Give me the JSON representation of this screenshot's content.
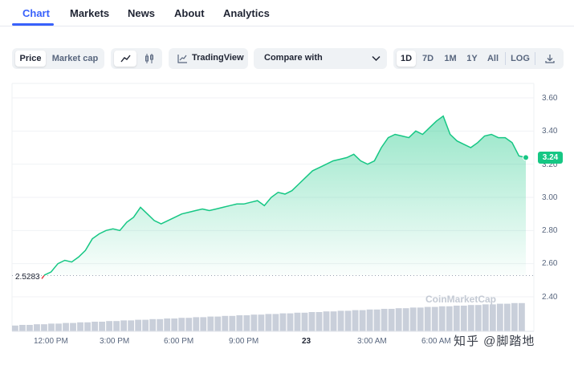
{
  "tabs": [
    "Chart",
    "Markets",
    "News",
    "About",
    "Analytics"
  ],
  "toolbar": {
    "price": "Price",
    "market_cap": "Market cap",
    "tradingview": "TradingView",
    "compare": "Compare with",
    "ranges": [
      "1D",
      "7D",
      "1M",
      "1Y",
      "All"
    ],
    "log": "LOG"
  },
  "icons": {
    "line": "line-chart-icon",
    "candle": "candlestick-icon",
    "tv": "tradingview-icon",
    "chevron": "chevron-down-icon",
    "download": "download-icon"
  },
  "colors": {
    "accent": "#3861fb",
    "up": "#16c784",
    "down": "#ea3943"
  },
  "chart_data": {
    "type": "area",
    "y_ticks": [
      "3.60",
      "3.40",
      "3.20",
      "3.00",
      "2.80",
      "2.60",
      "2.40"
    ],
    "ylim": [
      2.4,
      3.6
    ],
    "x_ticks": [
      "12:00 PM",
      "3:00 PM",
      "6:00 PM",
      "9:00 PM",
      "23",
      "3:00 AM",
      "6:00 AM"
    ],
    "open_price": "2.5283",
    "current_price": "3.24",
    "series": [
      {
        "values": [
          2.53,
          2.55,
          2.6,
          2.62,
          2.61,
          2.64,
          2.68,
          2.75,
          2.78,
          2.8,
          2.81,
          2.8,
          2.85,
          2.88,
          2.94,
          2.9,
          2.86,
          2.84,
          2.86,
          2.88,
          2.9,
          2.91,
          2.92,
          2.93,
          2.92,
          2.93,
          2.94,
          2.95,
          2.96,
          2.96,
          2.97,
          2.98,
          2.95,
          3.0,
          3.03,
          3.02,
          3.04,
          3.08,
          3.12,
          3.16,
          3.18,
          3.2,
          3.22,
          3.23,
          3.24,
          3.26,
          3.22,
          3.2,
          3.22,
          3.3,
          3.36,
          3.38,
          3.37,
          3.36,
          3.4,
          3.38,
          3.42,
          3.46,
          3.49,
          3.38,
          3.34,
          3.32,
          3.3,
          3.33,
          3.37,
          3.38,
          3.36,
          3.36,
          3.33,
          3.25,
          3.24
        ]
      }
    ],
    "volume": [
      0.09,
      0.1,
      0.1,
      0.11,
      0.11,
      0.12,
      0.12,
      0.13,
      0.13,
      0.14,
      0.14,
      0.15,
      0.15,
      0.16,
      0.16,
      0.17,
      0.17,
      0.18,
      0.18,
      0.19,
      0.19,
      0.2,
      0.2,
      0.21,
      0.21,
      0.22,
      0.22,
      0.23,
      0.23,
      0.24,
      0.24,
      0.25,
      0.25,
      0.26,
      0.26,
      0.27,
      0.27,
      0.28,
      0.28,
      0.29,
      0.29,
      0.3,
      0.3,
      0.31,
      0.31,
      0.32,
      0.32,
      0.33,
      0.33,
      0.34,
      0.34,
      0.35,
      0.35,
      0.36,
      0.36,
      0.37,
      0.37,
      0.38,
      0.38,
      0.39,
      0.39,
      0.4,
      0.4,
      0.41,
      0.41,
      0.42,
      0.42,
      0.43,
      0.43,
      0.44,
      0.44
    ],
    "grid": true
  },
  "watermark": "CoinMarketCap",
  "overlay_text": "知乎 @脚踏地"
}
